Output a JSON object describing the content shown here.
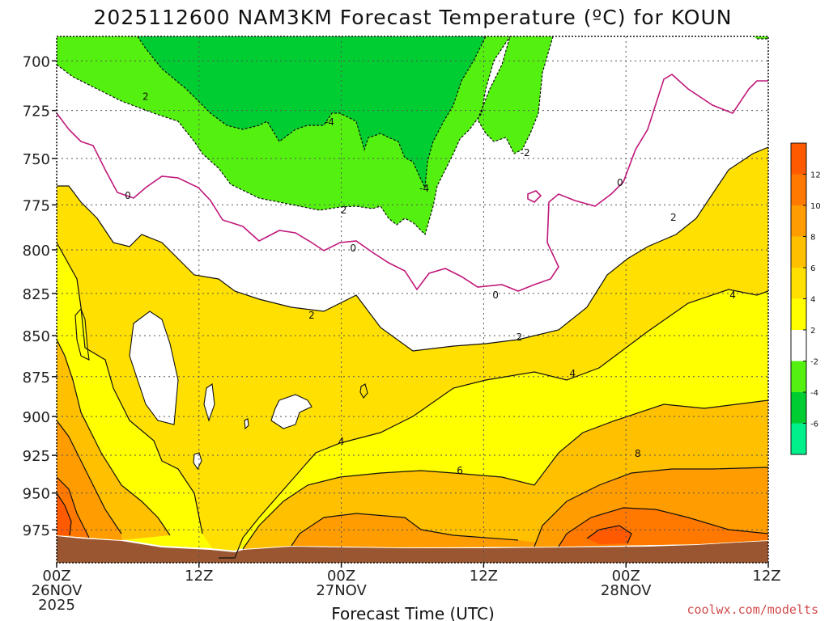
{
  "chart_data": {
    "type": "heatmap",
    "title": "2025112600 NAM3KM Forecast Temperature (ºC) for KOUN",
    "xlabel": "Forecast Time (UTC)",
    "ylabel": "",
    "x_ticks": [
      {
        "hours": 0,
        "line1": "00Z",
        "line2": "26NOV",
        "line3": "2025"
      },
      {
        "hours": 12,
        "line1": "12Z",
        "line2": "",
        "line3": ""
      },
      {
        "hours": 24,
        "line1": "00Z",
        "line2": "27NOV",
        "line3": ""
      },
      {
        "hours": 36,
        "line1": "12Z",
        "line2": "",
        "line3": ""
      },
      {
        "hours": 48,
        "line1": "00Z",
        "line2": "28NOV",
        "line3": ""
      },
      {
        "hours": 60,
        "line1": "12Z",
        "line2": "",
        "line3": ""
      }
    ],
    "xlim_hours": [
      0,
      60
    ],
    "y_ticks": [
      700,
      725,
      750,
      775,
      800,
      825,
      850,
      875,
      900,
      925,
      950,
      975
    ],
    "ylim_hpa": [
      688,
      998
    ],
    "y_scale": "log-pressure",
    "grid": true,
    "colorbar": {
      "levels": [
        -6,
        -4,
        -2,
        2,
        4,
        6,
        8,
        10,
        12
      ],
      "colors": [
        "#00f08c",
        "#00cd32",
        "#54f010",
        "#ffffff",
        "#ffff00",
        "#ffe000",
        "#ffc000",
        "#ff9c00",
        "#ff7800",
        "#ff5a00"
      ]
    },
    "contour_labels": [
      {
        "text": "2",
        "h": 7.5,
        "p": 718
      },
      {
        "text": "0",
        "h": 6.0,
        "p": 770
      },
      {
        "text": "-4",
        "h": 23.0,
        "p": 731
      },
      {
        "text": "2",
        "h": 24.2,
        "p": 778
      },
      {
        "text": "0",
        "h": 25.0,
        "p": 799
      },
      {
        "text": "-4",
        "h": 31.0,
        "p": 766
      },
      {
        "text": "-2",
        "h": 39.5,
        "p": 747
      },
      {
        "text": "0",
        "h": 47.5,
        "p": 763
      },
      {
        "text": "2",
        "h": 52.0,
        "p": 782
      },
      {
        "text": "0",
        "h": 37.0,
        "p": 826
      },
      {
        "text": "2",
        "h": 21.5,
        "p": 838
      },
      {
        "text": "2",
        "h": 39.0,
        "p": 851
      },
      {
        "text": "4",
        "h": 57.0,
        "p": 826
      },
      {
        "text": "4",
        "h": 43.5,
        "p": 873
      },
      {
        "text": "4",
        "h": 24.0,
        "p": 916
      },
      {
        "text": "6",
        "h": 34.0,
        "p": 935
      },
      {
        "text": "8",
        "h": 49.0,
        "p": 924
      }
    ],
    "credit": "coolwx.com/modelts"
  }
}
